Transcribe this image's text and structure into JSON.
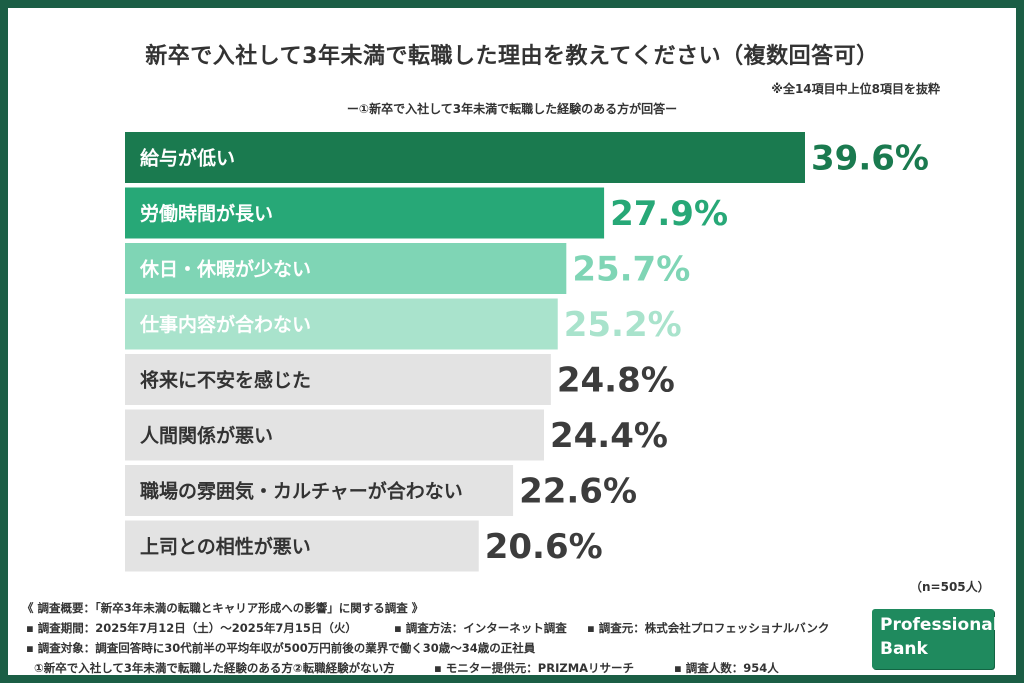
{
  "header": {
    "title": "新卒で入社して3年未満で転職した理由を教えてください（複数回答可）",
    "note": "※全14項目中上位8項目を抜粋",
    "subtitle": "ー①新卒で入社して3年未満で転職した経験のある方が回答ー"
  },
  "chart_data": {
    "type": "bar",
    "orientation": "horizontal",
    "categories": [
      "給与が低い",
      "労働時間が長い",
      "休日・休暇が少ない",
      "仕事内容が合わない",
      "将来に不安を感じた",
      "人間関係が悪い",
      "職場の雰囲気・カルチャーが合わない",
      "上司との相性が悪い"
    ],
    "values": [
      39.6,
      27.9,
      25.7,
      25.2,
      24.8,
      24.4,
      22.6,
      20.6
    ],
    "value_labels": [
      "39.6%",
      "27.9%",
      "25.7%",
      "25.2%",
      "24.8%",
      "24.4%",
      "22.6%",
      "20.6%"
    ],
    "bar_colors": [
      "#1a7a4f",
      "#27a877",
      "#7fd5b5",
      "#a9e3cc",
      "#e3e3e3",
      "#e3e3e3",
      "#e3e3e3",
      "#e3e3e3"
    ],
    "label_colors": [
      "#ffffff",
      "#ffffff",
      "#ffffff",
      "#ffffff",
      "#333333",
      "#333333",
      "#333333",
      "#333333"
    ],
    "value_colors": [
      "#1a7a4f",
      "#27a877",
      "#7fd5b5",
      "#a9e3cc",
      "#3c3c3c",
      "#3c3c3c",
      "#3c3c3c",
      "#3c3c3c"
    ],
    "xlim": [
      0,
      40
    ]
  },
  "sample_note": "（n=505人）",
  "footer": {
    "overview": "《 調査概要：「新卒3年未満の転職とキャリア形成への影響」に関する調査 》",
    "period": "▪ 調査期間：2025年7月12日（土）〜2025年7月15日（火）",
    "method": "▪ 調査方法：インターネット調査",
    "source": "▪ 調査元：株式会社プロフェッショナルバンク",
    "target": "▪ 調査対象：調査回答時に30代前半の平均年収が500万円前後の業界で働く30歳〜34歳の正社員",
    "target_detail": "①新卒で入社して3年未満で転職した経験のある方②転職経験がない方",
    "monitor": "▪ モニター提供元：PRIZMAリサーチ",
    "respondents": "▪ 調査人数：954人"
  },
  "logo": {
    "line1": "Professional",
    "line2": "Bank"
  }
}
